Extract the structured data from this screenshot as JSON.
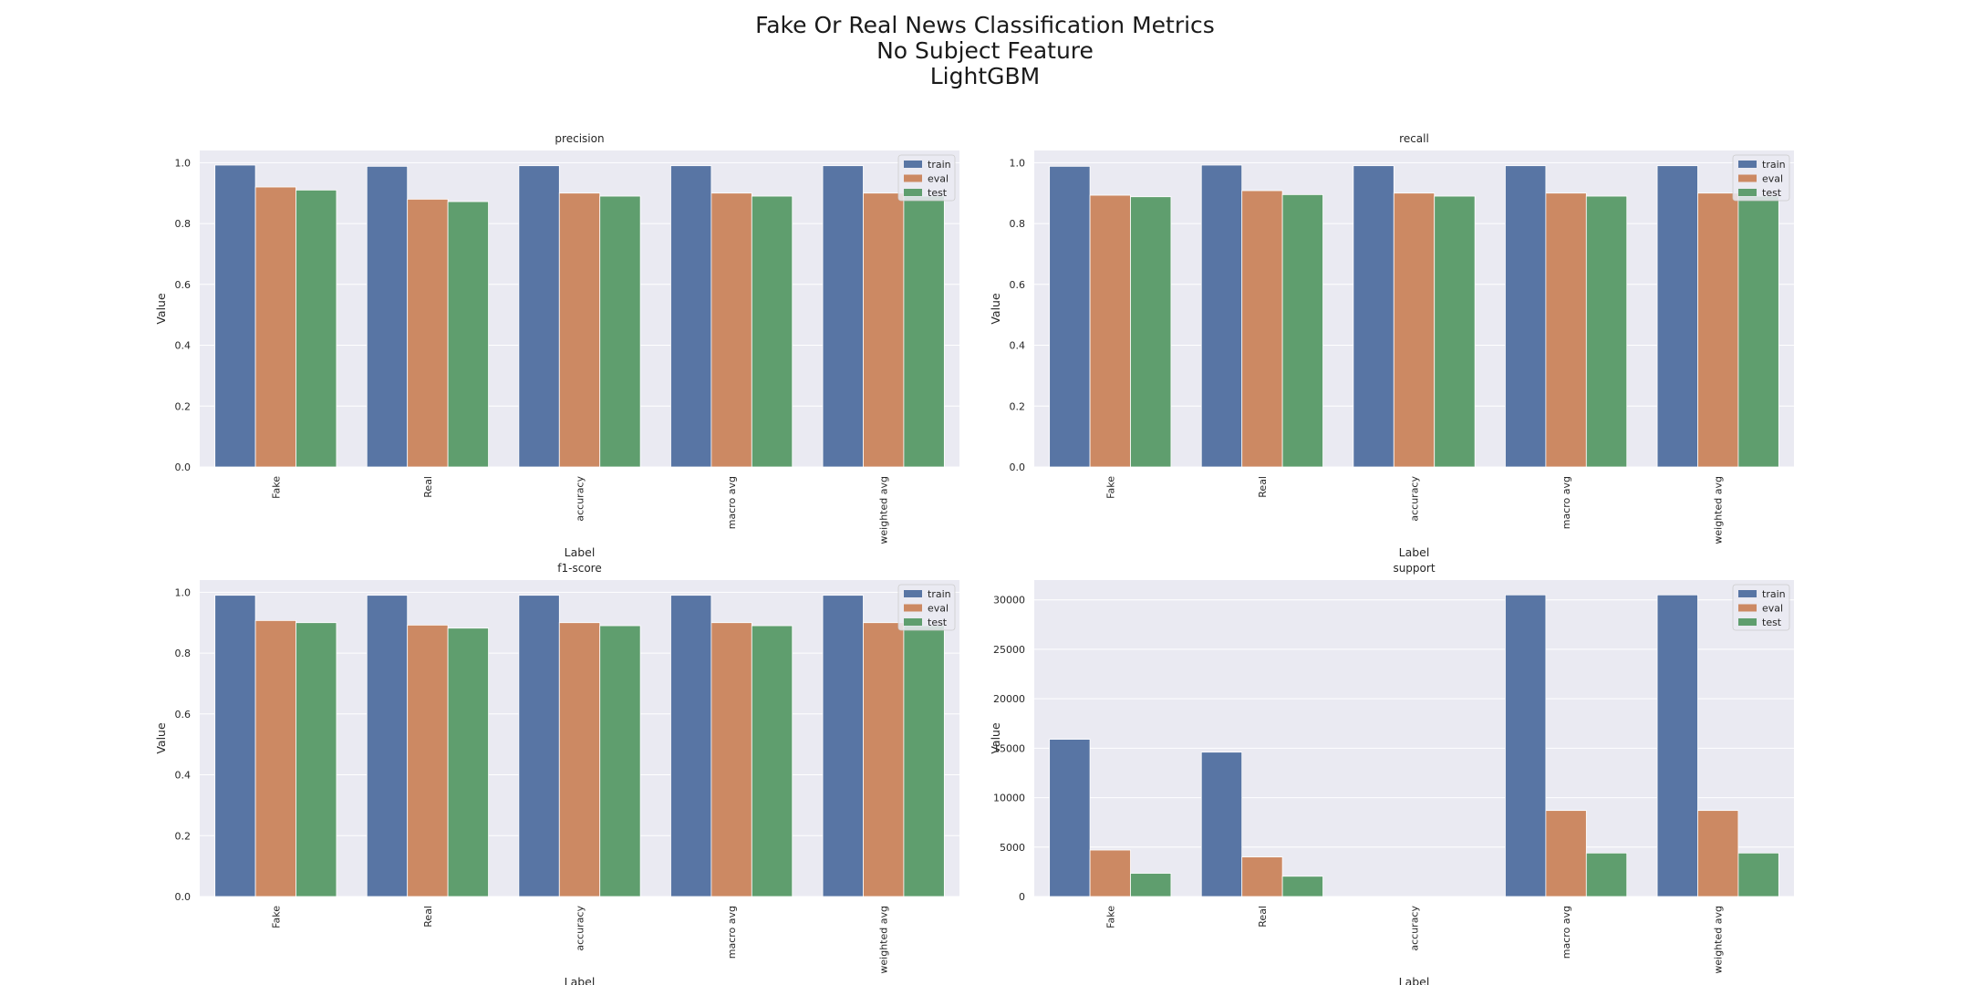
{
  "suptitle": [
    "Fake Or Real News Classification Metrics",
    "No Subject Feature",
    "LightGBM"
  ],
  "colors": {
    "train": "#5875a4",
    "eval": "#cc8963",
    "test": "#5f9e6e",
    "axes_bg": "#eaeaf2",
    "grid": "#ffffff"
  },
  "chart_data": [
    {
      "type": "bar",
      "title": "precision",
      "xlabel": "Label",
      "ylabel": "Value",
      "categories": [
        "Fake",
        "Real",
        "accuracy",
        "macro avg",
        "weighted avg"
      ],
      "ylim": [
        0,
        1.04
      ],
      "yticks": [
        0.0,
        0.2,
        0.4,
        0.6,
        0.8,
        1.0
      ],
      "ytick_labels": [
        "0.0",
        "0.2",
        "0.4",
        "0.6",
        "0.8",
        "1.0"
      ],
      "legend_position": "top-right",
      "series": [
        {
          "name": "train",
          "values": [
            0.992,
            0.988,
            0.99,
            0.99,
            0.99
          ]
        },
        {
          "name": "eval",
          "values": [
            0.92,
            0.88,
            0.9,
            0.9,
            0.9
          ]
        },
        {
          "name": "test",
          "values": [
            0.91,
            0.872,
            0.89,
            0.89,
            0.89
          ]
        }
      ]
    },
    {
      "type": "bar",
      "title": "recall",
      "xlabel": "Label",
      "ylabel": "Value",
      "categories": [
        "Fake",
        "Real",
        "accuracy",
        "macro avg",
        "weighted avg"
      ],
      "ylim": [
        0,
        1.04
      ],
      "yticks": [
        0.0,
        0.2,
        0.4,
        0.6,
        0.8,
        1.0
      ],
      "ytick_labels": [
        "0.0",
        "0.2",
        "0.4",
        "0.6",
        "0.8",
        "1.0"
      ],
      "legend_position": "top-right",
      "series": [
        {
          "name": "train",
          "values": [
            0.988,
            0.992,
            0.99,
            0.99,
            0.99
          ]
        },
        {
          "name": "eval",
          "values": [
            0.893,
            0.908,
            0.9,
            0.9,
            0.9
          ]
        },
        {
          "name": "test",
          "values": [
            0.888,
            0.895,
            0.89,
            0.89,
            0.89
          ]
        }
      ]
    },
    {
      "type": "bar",
      "title": "f1-score",
      "xlabel": "Label",
      "ylabel": "Value",
      "categories": [
        "Fake",
        "Real",
        "accuracy",
        "macro avg",
        "weighted avg"
      ],
      "ylim": [
        0,
        1.04
      ],
      "yticks": [
        0.0,
        0.2,
        0.4,
        0.6,
        0.8,
        1.0
      ],
      "ytick_labels": [
        "0.0",
        "0.2",
        "0.4",
        "0.6",
        "0.8",
        "1.0"
      ],
      "legend_position": "top-right",
      "series": [
        {
          "name": "train",
          "values": [
            0.99,
            0.99,
            0.99,
            0.99,
            0.99
          ]
        },
        {
          "name": "eval",
          "values": [
            0.907,
            0.892,
            0.9,
            0.9,
            0.9
          ]
        },
        {
          "name": "test",
          "values": [
            0.9,
            0.882,
            0.89,
            0.89,
            0.89
          ]
        }
      ]
    },
    {
      "type": "bar",
      "title": "support",
      "xlabel": "Label",
      "ylabel": "Value",
      "categories": [
        "Fake",
        "Real",
        "accuracy",
        "macro avg",
        "weighted avg"
      ],
      "ylim": [
        0,
        32000
      ],
      "yticks": [
        0,
        5000,
        10000,
        15000,
        20000,
        25000,
        30000
      ],
      "ytick_labels": [
        "0",
        "5000",
        "10000",
        "15000",
        "20000",
        "25000",
        "30000"
      ],
      "legend_position": "top-right",
      "series": [
        {
          "name": "train",
          "values": [
            15900,
            14600,
            0,
            30500,
            30500
          ]
        },
        {
          "name": "eval",
          "values": [
            4700,
            4000,
            0,
            8700,
            8700
          ]
        },
        {
          "name": "test",
          "values": [
            2350,
            2050,
            0,
            4400,
            4400
          ]
        }
      ]
    }
  ]
}
